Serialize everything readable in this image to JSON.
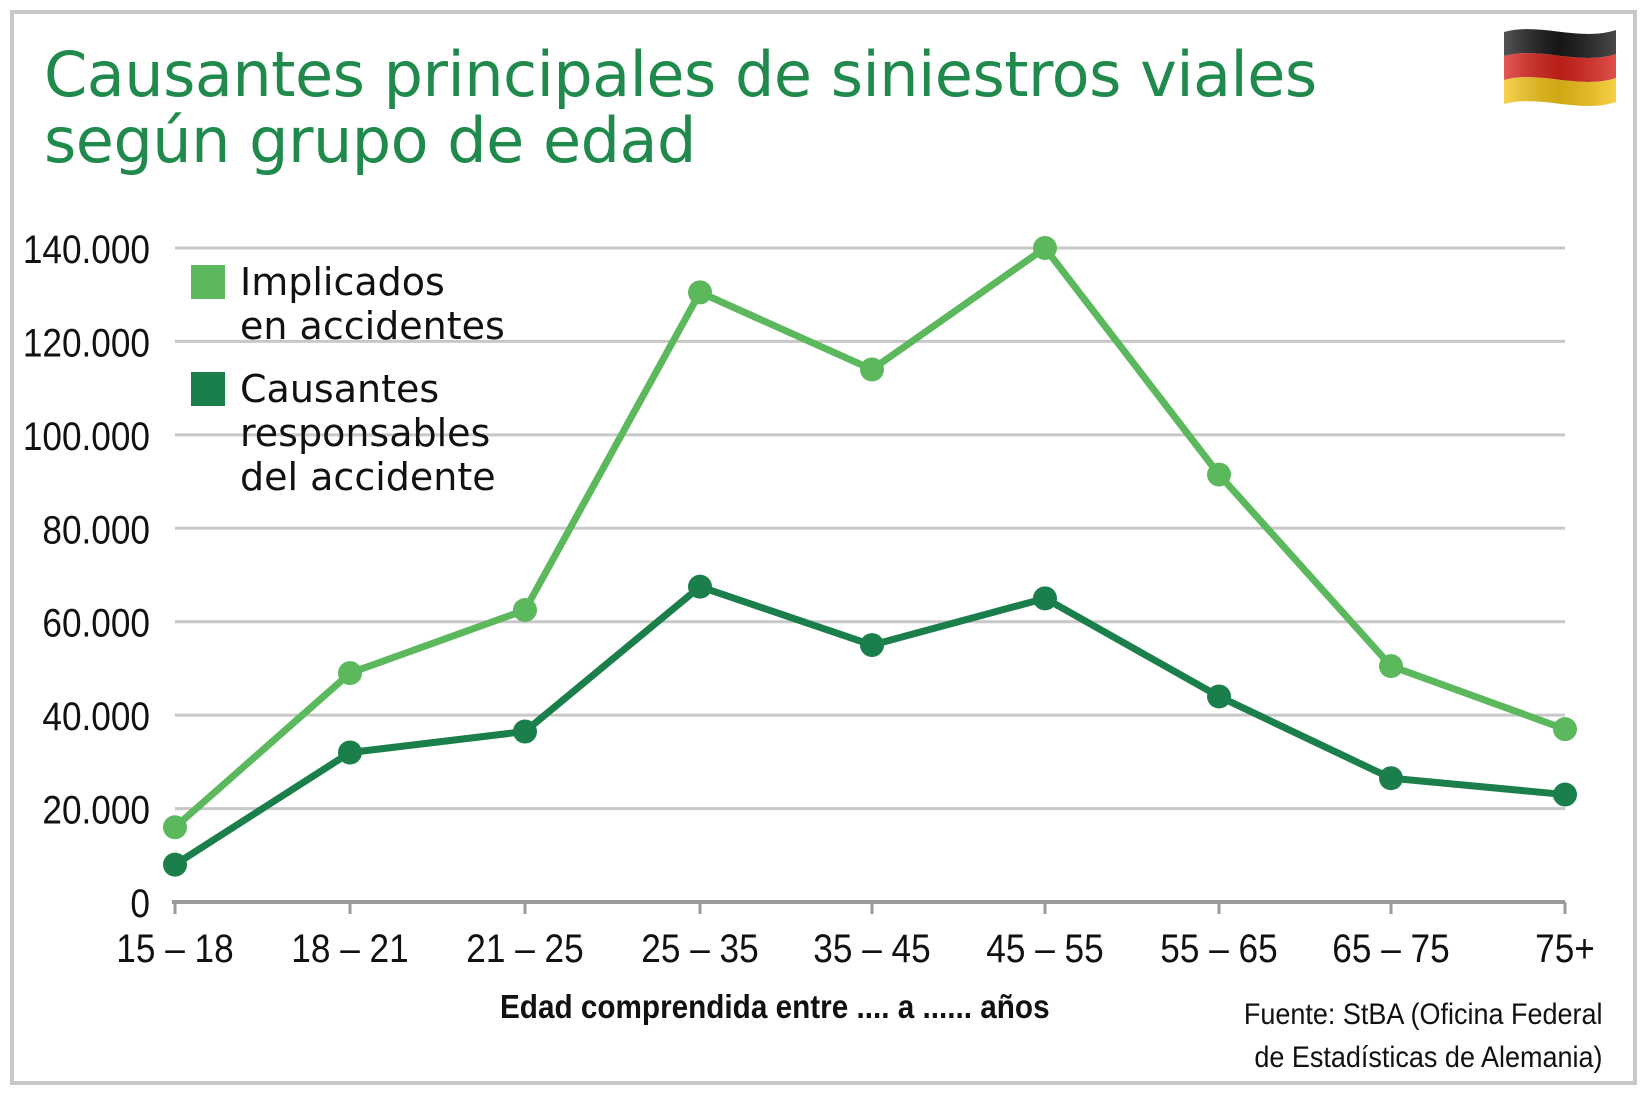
{
  "title": "Causantes principales de siniestros viales según grupo de edad",
  "source": {
    "line1": "Fuente: StBA (Oficina Federal",
    "line2": "de Estadísticas de Alemania)"
  },
  "flag_icon": "germany-flag-icon",
  "colors": {
    "title": "#1f8a4c",
    "implicados": "#5cb85c",
    "causantes": "#1a7f4b",
    "grid": "#c8c8c8",
    "axis": "#111111"
  },
  "chart_data": {
    "type": "line",
    "categories": [
      "15 – 18",
      "18 – 21",
      "21 – 25",
      "25 – 35",
      "35 – 45",
      "45 – 55",
      "55 – 65",
      "65 – 75",
      "75+"
    ],
    "series": [
      {
        "name": "Implicados en accidentes",
        "name_lines": [
          "Implicados",
          "en accidentes"
        ],
        "color": "#5cb85c",
        "values": [
          16000,
          49000,
          62500,
          130500,
          114000,
          140000,
          91500,
          50500,
          37000
        ]
      },
      {
        "name": "Causantes responsables del accidente",
        "name_lines": [
          "Causantes",
          "responsables",
          "del accidente"
        ],
        "color": "#1a7f4b",
        "values": [
          8000,
          32000,
          36500,
          67500,
          55000,
          65000,
          44000,
          26500,
          23000
        ]
      }
    ],
    "y_ticks": [
      "0",
      "20.000",
      "40.000",
      "60.000",
      "80.000",
      "100.000",
      "120.000",
      "140.000"
    ],
    "ylim": [
      0,
      140000
    ],
    "xlabel": "Edad comprendida entre .... a ...... años",
    "ylabel": "",
    "grid": true,
    "legend_position": "top-left"
  }
}
